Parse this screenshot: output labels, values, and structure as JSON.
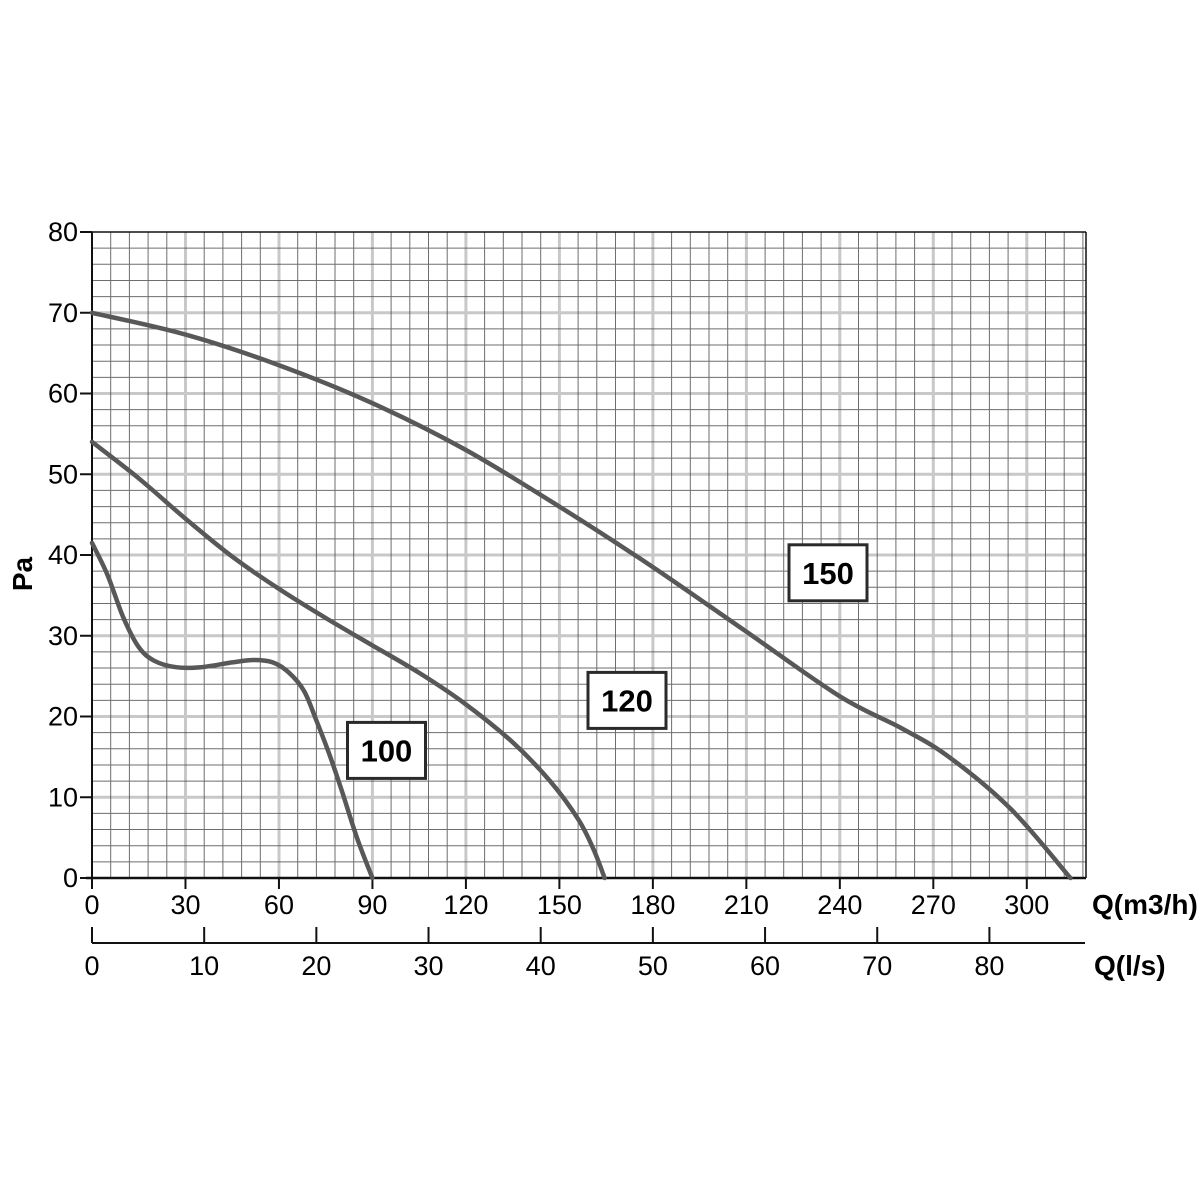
{
  "chart_data": {
    "type": "line",
    "ylabel": "Pa",
    "xlabel_primary": "Q(m3/h)",
    "xlabel_secondary": "Q(l/s)",
    "y_axis": {
      "min": 0,
      "max": 80,
      "ticks": [
        0,
        10,
        20,
        30,
        40,
        50,
        60,
        70,
        80
      ]
    },
    "x_axis_m3h": {
      "min": 0,
      "max": 319,
      "ticks": [
        0,
        30,
        60,
        90,
        120,
        150,
        180,
        210,
        240,
        270,
        300
      ]
    },
    "x_axis_ls": {
      "ticks": [
        0,
        10,
        20,
        30,
        40,
        50,
        60,
        70,
        80
      ],
      "m3h_per_unit": 3.6
    },
    "grid": {
      "minor_x_step": 6,
      "minor_y_step": 2,
      "major_x_step": 30,
      "major_y_step": 10
    },
    "series": [
      {
        "name": "100",
        "points": [
          [
            0,
            41.5
          ],
          [
            5,
            37.5
          ],
          [
            10,
            32.3
          ],
          [
            15,
            28.6
          ],
          [
            20,
            26.9
          ],
          [
            27,
            26.1
          ],
          [
            35,
            26.1
          ],
          [
            45,
            26.7
          ],
          [
            52,
            27.0
          ],
          [
            58,
            26.7
          ],
          [
            63,
            25.5
          ],
          [
            68,
            23.2
          ],
          [
            72,
            19.5
          ],
          [
            76,
            15.5
          ],
          [
            80,
            11.0
          ],
          [
            85,
            5.0
          ],
          [
            90,
            0
          ]
        ]
      },
      {
        "name": "120",
        "points": [
          [
            0,
            54
          ],
          [
            15,
            49.5
          ],
          [
            30,
            44.5
          ],
          [
            45,
            39.8
          ],
          [
            60,
            35.8
          ],
          [
            75,
            32.2
          ],
          [
            90,
            28.8
          ],
          [
            105,
            25.4
          ],
          [
            120,
            21.5
          ],
          [
            135,
            16.8
          ],
          [
            147,
            12.0
          ],
          [
            156,
            7.3
          ],
          [
            161,
            3.5
          ],
          [
            164.5,
            0
          ]
        ]
      },
      {
        "name": "150",
        "points": [
          [
            0,
            70
          ],
          [
            30,
            67.3
          ],
          [
            60,
            63.5
          ],
          [
            90,
            58.8
          ],
          [
            120,
            53.0
          ],
          [
            150,
            46.0
          ],
          [
            180,
            38.5
          ],
          [
            210,
            30.5
          ],
          [
            240,
            22.5
          ],
          [
            260,
            18.5
          ],
          [
            275,
            15.0
          ],
          [
            295,
            8.5
          ],
          [
            314,
            0
          ]
        ]
      }
    ],
    "curve_labels": [
      {
        "text": "100",
        "q": 94.5,
        "pa": 15.8
      },
      {
        "text": "120",
        "q": 171.7,
        "pa": 22.0
      },
      {
        "text": "150",
        "q": 236.2,
        "pa": 37.8
      }
    ],
    "legend": "none",
    "grid_visible": true
  },
  "colors": {
    "background": "#ffffff",
    "curve": "#58585b",
    "grid_minor": "#4a4a4a",
    "grid_major": "#c8c8c8",
    "axis": "#111111",
    "text": "#000000",
    "label_box_fill": "#ffffff",
    "label_box_border": "#2a2a2a"
  }
}
